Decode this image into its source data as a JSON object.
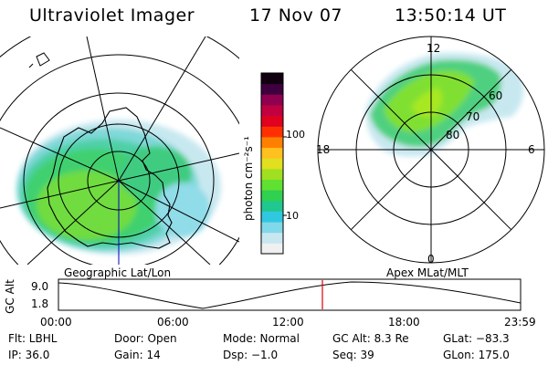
{
  "header": {
    "instrument": "Ultraviolet Imager",
    "date": "17 Nov 07",
    "time": "13:50:14 UT"
  },
  "panels": {
    "left_label": "Geographic Lat/Lon",
    "right_label": "Apex MLat/MLT",
    "mlt_labels": [
      "12",
      "18",
      "6",
      "0"
    ],
    "mlat_labels": [
      "60",
      "70",
      "80"
    ]
  },
  "colorbar": {
    "unit_label": "photon cm⁻²s⁻¹",
    "ticks": [
      "100",
      "10"
    ],
    "colors": [
      "#f0f0f0",
      "#c8e8f0",
      "#80d8e8",
      "#30c8e0",
      "#20c890",
      "#30d050",
      "#60e030",
      "#a0e020",
      "#e0e020",
      "#ffc020",
      "#ff8000",
      "#ff3000",
      "#e00020",
      "#c00040",
      "#900050",
      "#400040",
      "#100010"
    ]
  },
  "altitude_plot": {
    "ylabel": "GC Alt",
    "yticks": [
      "9.0",
      "1.8"
    ],
    "xticks": [
      "00:00",
      "06:00",
      "12:00",
      "18:00",
      "23:59"
    ],
    "current_time_marker": "13:50",
    "marker_color": "#e00000"
  },
  "info": {
    "flt": "Flt: LBHL",
    "door": "Door: Open",
    "mode": "Mode: Normal",
    "gc_alt": "GC Alt: 8.3 Re",
    "glat": "GLat: −83.3",
    "ip": "IP: 36.0",
    "gain": "Gain: 14",
    "dsp": "Dsp:   −1.0",
    "seq": "Seq: 39",
    "glon": "GLon: 175.0"
  }
}
